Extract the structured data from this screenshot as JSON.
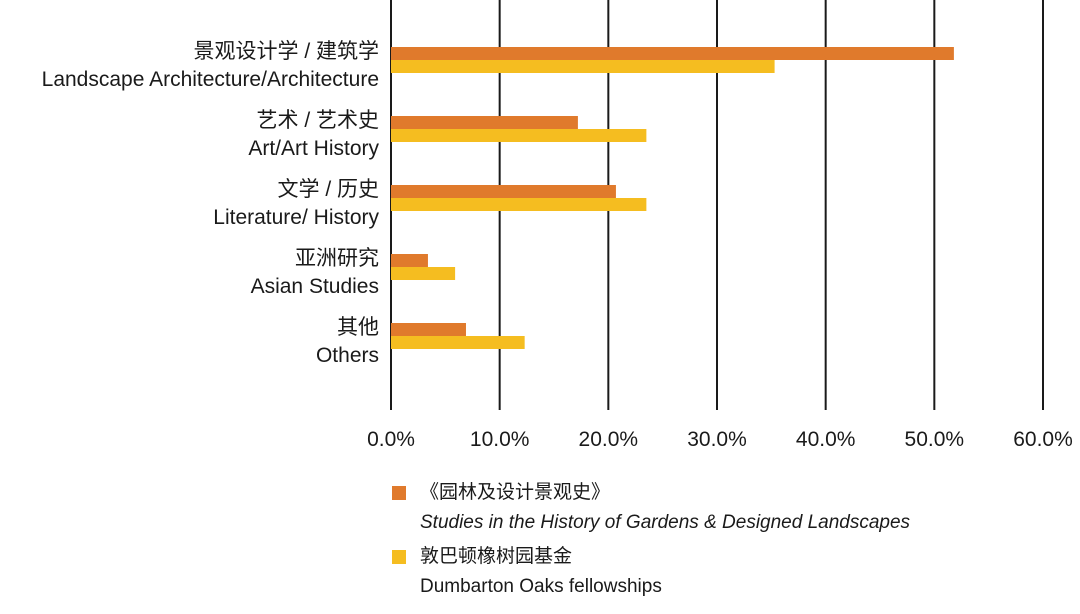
{
  "chart_data": {
    "type": "bar",
    "orientation": "horizontal",
    "categories": [
      {
        "zh": "景观设计学 / 建筑学",
        "en": "Landscape Architecture/Architecture"
      },
      {
        "zh": "艺术 / 艺术史",
        "en": "Art/Art History"
      },
      {
        "zh": "文学 / 历史",
        "en": "Literature/ History"
      },
      {
        "zh": "亚洲研究",
        "en": "Asian Studies"
      },
      {
        "zh": "其他",
        "en": "Others"
      }
    ],
    "series": [
      {
        "name_zh": "《园林及设计景观史》",
        "name_en": "Studies in the History of Gardens & Designed Landscapes",
        "color": "#e07a2c",
        "values": [
          51.8,
          17.2,
          20.7,
          3.4,
          6.9
        ]
      },
      {
        "name_zh": "敦巴顿橡树园基金",
        "name_en": "Dumbarton Oaks fellowships",
        "color": "#f5bd20",
        "values": [
          35.3,
          23.5,
          23.5,
          5.9,
          12.3
        ]
      }
    ],
    "xlim": [
      0,
      60
    ],
    "ticks": [
      0,
      10,
      20,
      30,
      40,
      50,
      60
    ],
    "tick_labels": [
      "0.0%",
      "10.0%",
      "20.0%",
      "30.0%",
      "40.0%",
      "50.0%",
      "60.0%"
    ],
    "grid": true,
    "legend_position": "bottom"
  }
}
